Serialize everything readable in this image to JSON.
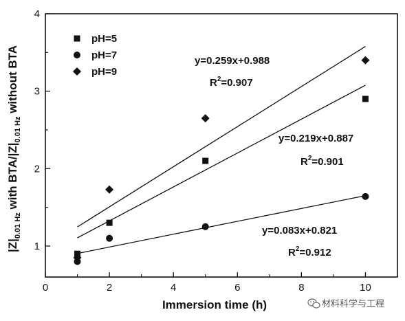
{
  "chart_data": {
    "type": "scatter",
    "xlabel": "Immersion time (h)",
    "ylabel": {
      "p1": "|Z|",
      "p1_sub": "0.01 Hz",
      "p2": " with BTA/|Z|",
      "p2_sub": "0.01 Hz",
      "p3": " without BTA"
    },
    "xlim": [
      0,
      11
    ],
    "ylim": [
      0.6,
      4
    ],
    "xticks": [
      "0",
      "2",
      "4",
      "6",
      "8",
      "10"
    ],
    "yticks": [
      "1",
      "2",
      "3",
      "4"
    ],
    "legend_position": "top-left",
    "grid": false,
    "series": [
      {
        "name": "pH=5",
        "marker": "square",
        "points": [
          [
            1,
            0.9
          ],
          [
            2,
            1.3
          ],
          [
            5,
            2.1
          ],
          [
            10,
            2.9
          ]
        ],
        "fit": {
          "slope": 0.219,
          "intercept": 0.887
        },
        "equation": "y=0.219x+0.887",
        "r2_prefix": "R",
        "r2_sup": "2",
        "r2_value": "=0.901"
      },
      {
        "name": "pH=7",
        "marker": "circle",
        "points": [
          [
            1,
            0.8
          ],
          [
            2,
            1.1
          ],
          [
            5,
            1.25
          ],
          [
            10,
            1.64
          ]
        ],
        "fit": {
          "slope": 0.083,
          "intercept": 0.821
        },
        "equation": "y=0.083x+0.821",
        "r2_prefix": "R",
        "r2_sup": "2",
        "r2_value": "=0.912"
      },
      {
        "name": "pH=9",
        "marker": "diamond",
        "points": [
          [
            1,
            0.85
          ],
          [
            2,
            1.73
          ],
          [
            5,
            2.65
          ],
          [
            10,
            3.4
          ]
        ],
        "fit": {
          "slope": 0.259,
          "intercept": 0.988
        },
        "equation": "y=0.259x+0.988",
        "r2_prefix": "R",
        "r2_sup": "2",
        "r2_value": "=0.907"
      }
    ],
    "fit_x_range": [
      1,
      10
    ]
  },
  "watermark": {
    "text": "材料科学与工程",
    "icon": "wechat-icon"
  }
}
